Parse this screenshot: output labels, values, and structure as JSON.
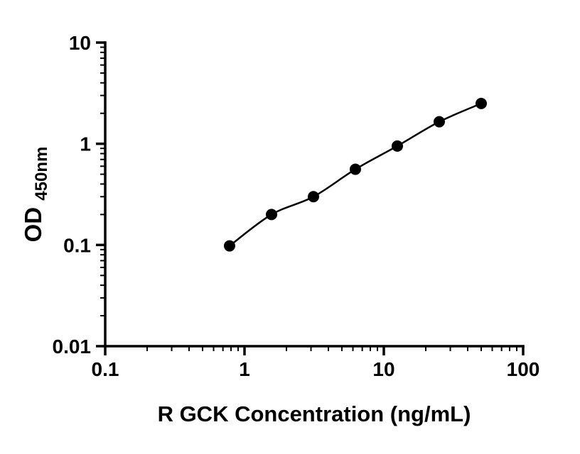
{
  "chart_data": {
    "type": "line",
    "title": "",
    "xlabel": "R GCK Concentration (ng/mL)",
    "ylabel_main": "OD",
    "ylabel_sub": "450nm",
    "xscale": "log",
    "yscale": "log",
    "xlim": [
      0.1,
      100
    ],
    "ylim": [
      0.01,
      10
    ],
    "x": [
      0.781,
      1.563,
      3.125,
      6.25,
      12.5,
      25,
      50
    ],
    "y": [
      0.098,
      0.2,
      0.3,
      0.56,
      0.95,
      1.65,
      2.5
    ],
    "x_major_ticks": [
      0.1,
      1,
      10,
      100
    ],
    "x_tick_labels": [
      "0.1",
      "1",
      "10",
      "100"
    ],
    "y_major_ticks": [
      0.01,
      0.1,
      1,
      10
    ],
    "y_tick_labels": [
      "0.01",
      "0.1",
      "1",
      "10"
    ],
    "grid": "off",
    "legend": "none",
    "line_color": "#000000",
    "marker_color": "#000000",
    "axis_color": "#000000",
    "marker_radius": 8
  }
}
